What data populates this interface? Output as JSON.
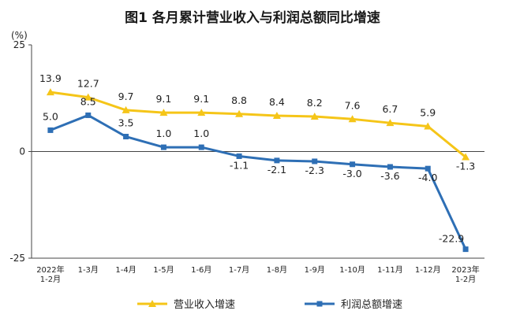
{
  "chart_data": {
    "type": "line",
    "title": "图1  各月累计营业收入与利润总额同比增速",
    "ylabel": "(%)",
    "ylim": [
      -25,
      25
    ],
    "yticks": [
      "25",
      "0",
      "-25"
    ],
    "categories": [
      [
        "2022年",
        "1-2月"
      ],
      [
        "1-3月"
      ],
      [
        "1-4月"
      ],
      [
        "1-5月"
      ],
      [
        "1-6月"
      ],
      [
        "1-7月"
      ],
      [
        "1-8月"
      ],
      [
        "1-9月"
      ],
      [
        "1-10月"
      ],
      [
        "1-11月"
      ],
      [
        "1-12月"
      ],
      [
        "2023年",
        "1-2月"
      ]
    ],
    "series": [
      {
        "name": "营业收入增速",
        "color": "#f5c518",
        "marker": "triangle",
        "values": [
          13.9,
          12.7,
          9.7,
          9.1,
          9.1,
          8.8,
          8.4,
          8.2,
          7.6,
          6.7,
          5.9,
          -1.3
        ],
        "labels": [
          "13.9",
          "12.7",
          "9.7",
          "9.1",
          "9.1",
          "8.8",
          "8.4",
          "8.2",
          "7.6",
          "6.7",
          "5.9",
          "-1.3"
        ]
      },
      {
        "name": "利润总额增速",
        "color": "#2e6fb5",
        "marker": "square",
        "values": [
          5.0,
          8.5,
          3.5,
          1.0,
          1.0,
          -1.1,
          -2.1,
          -2.3,
          -3.0,
          -3.6,
          -4.0,
          -22.9
        ],
        "labels": [
          "5.0",
          "8.5",
          "3.5",
          "1.0",
          "1.0",
          "-1.1",
          "-2.1",
          "-2.3",
          "-3.0",
          "-3.6",
          "-4.0",
          "-22.9"
        ]
      }
    ],
    "legend_position": "bottom",
    "grid": false
  }
}
